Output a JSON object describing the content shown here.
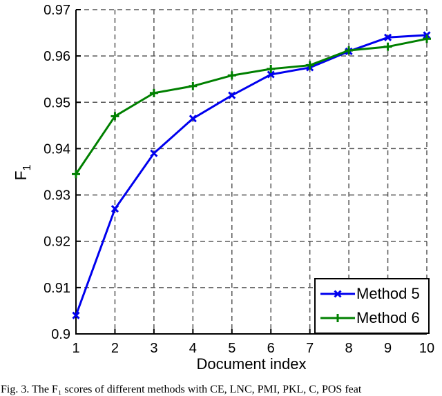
{
  "figure": {
    "caption": "Fig. 3. The F₁ scores of different methods with CE, LNC, PMI, PKL, C, POS feat"
  },
  "chart_data": {
    "type": "line",
    "title": "",
    "xlabel": "Document index",
    "ylabel_main": "F",
    "ylabel_sub": "1",
    "x": [
      1,
      2,
      3,
      4,
      5,
      6,
      7,
      8,
      9,
      10
    ],
    "xtick_labels": [
      "1",
      "2",
      "3",
      "4",
      "5",
      "6",
      "7",
      "8",
      "9",
      "10"
    ],
    "yticks": [
      0.9,
      0.91,
      0.92,
      0.93,
      0.94,
      0.95,
      0.96,
      0.97
    ],
    "ytick_labels": [
      "0.9",
      "0.91",
      "0.92",
      "0.93",
      "0.94",
      "0.95",
      "0.96",
      "0.97"
    ],
    "xlim": [
      1,
      10
    ],
    "ylim": [
      0.9,
      0.97
    ],
    "grid": "dashed",
    "legend_position": "bottom-right",
    "colors": {
      "axis": "#000000",
      "grid": "#555555",
      "background": "#ffffff"
    },
    "series": [
      {
        "name": "Method 5",
        "color": "#0000ee",
        "marker": "x",
        "values": [
          0.904,
          0.927,
          0.939,
          0.9465,
          0.9515,
          0.956,
          0.9575,
          0.961,
          0.964,
          0.9645
        ]
      },
      {
        "name": "Method 6",
        "color": "#008000",
        "marker": "+",
        "values": [
          0.9345,
          0.947,
          0.952,
          0.9535,
          0.9558,
          0.9572,
          0.958,
          0.9612,
          0.962,
          0.9637
        ]
      }
    ]
  }
}
